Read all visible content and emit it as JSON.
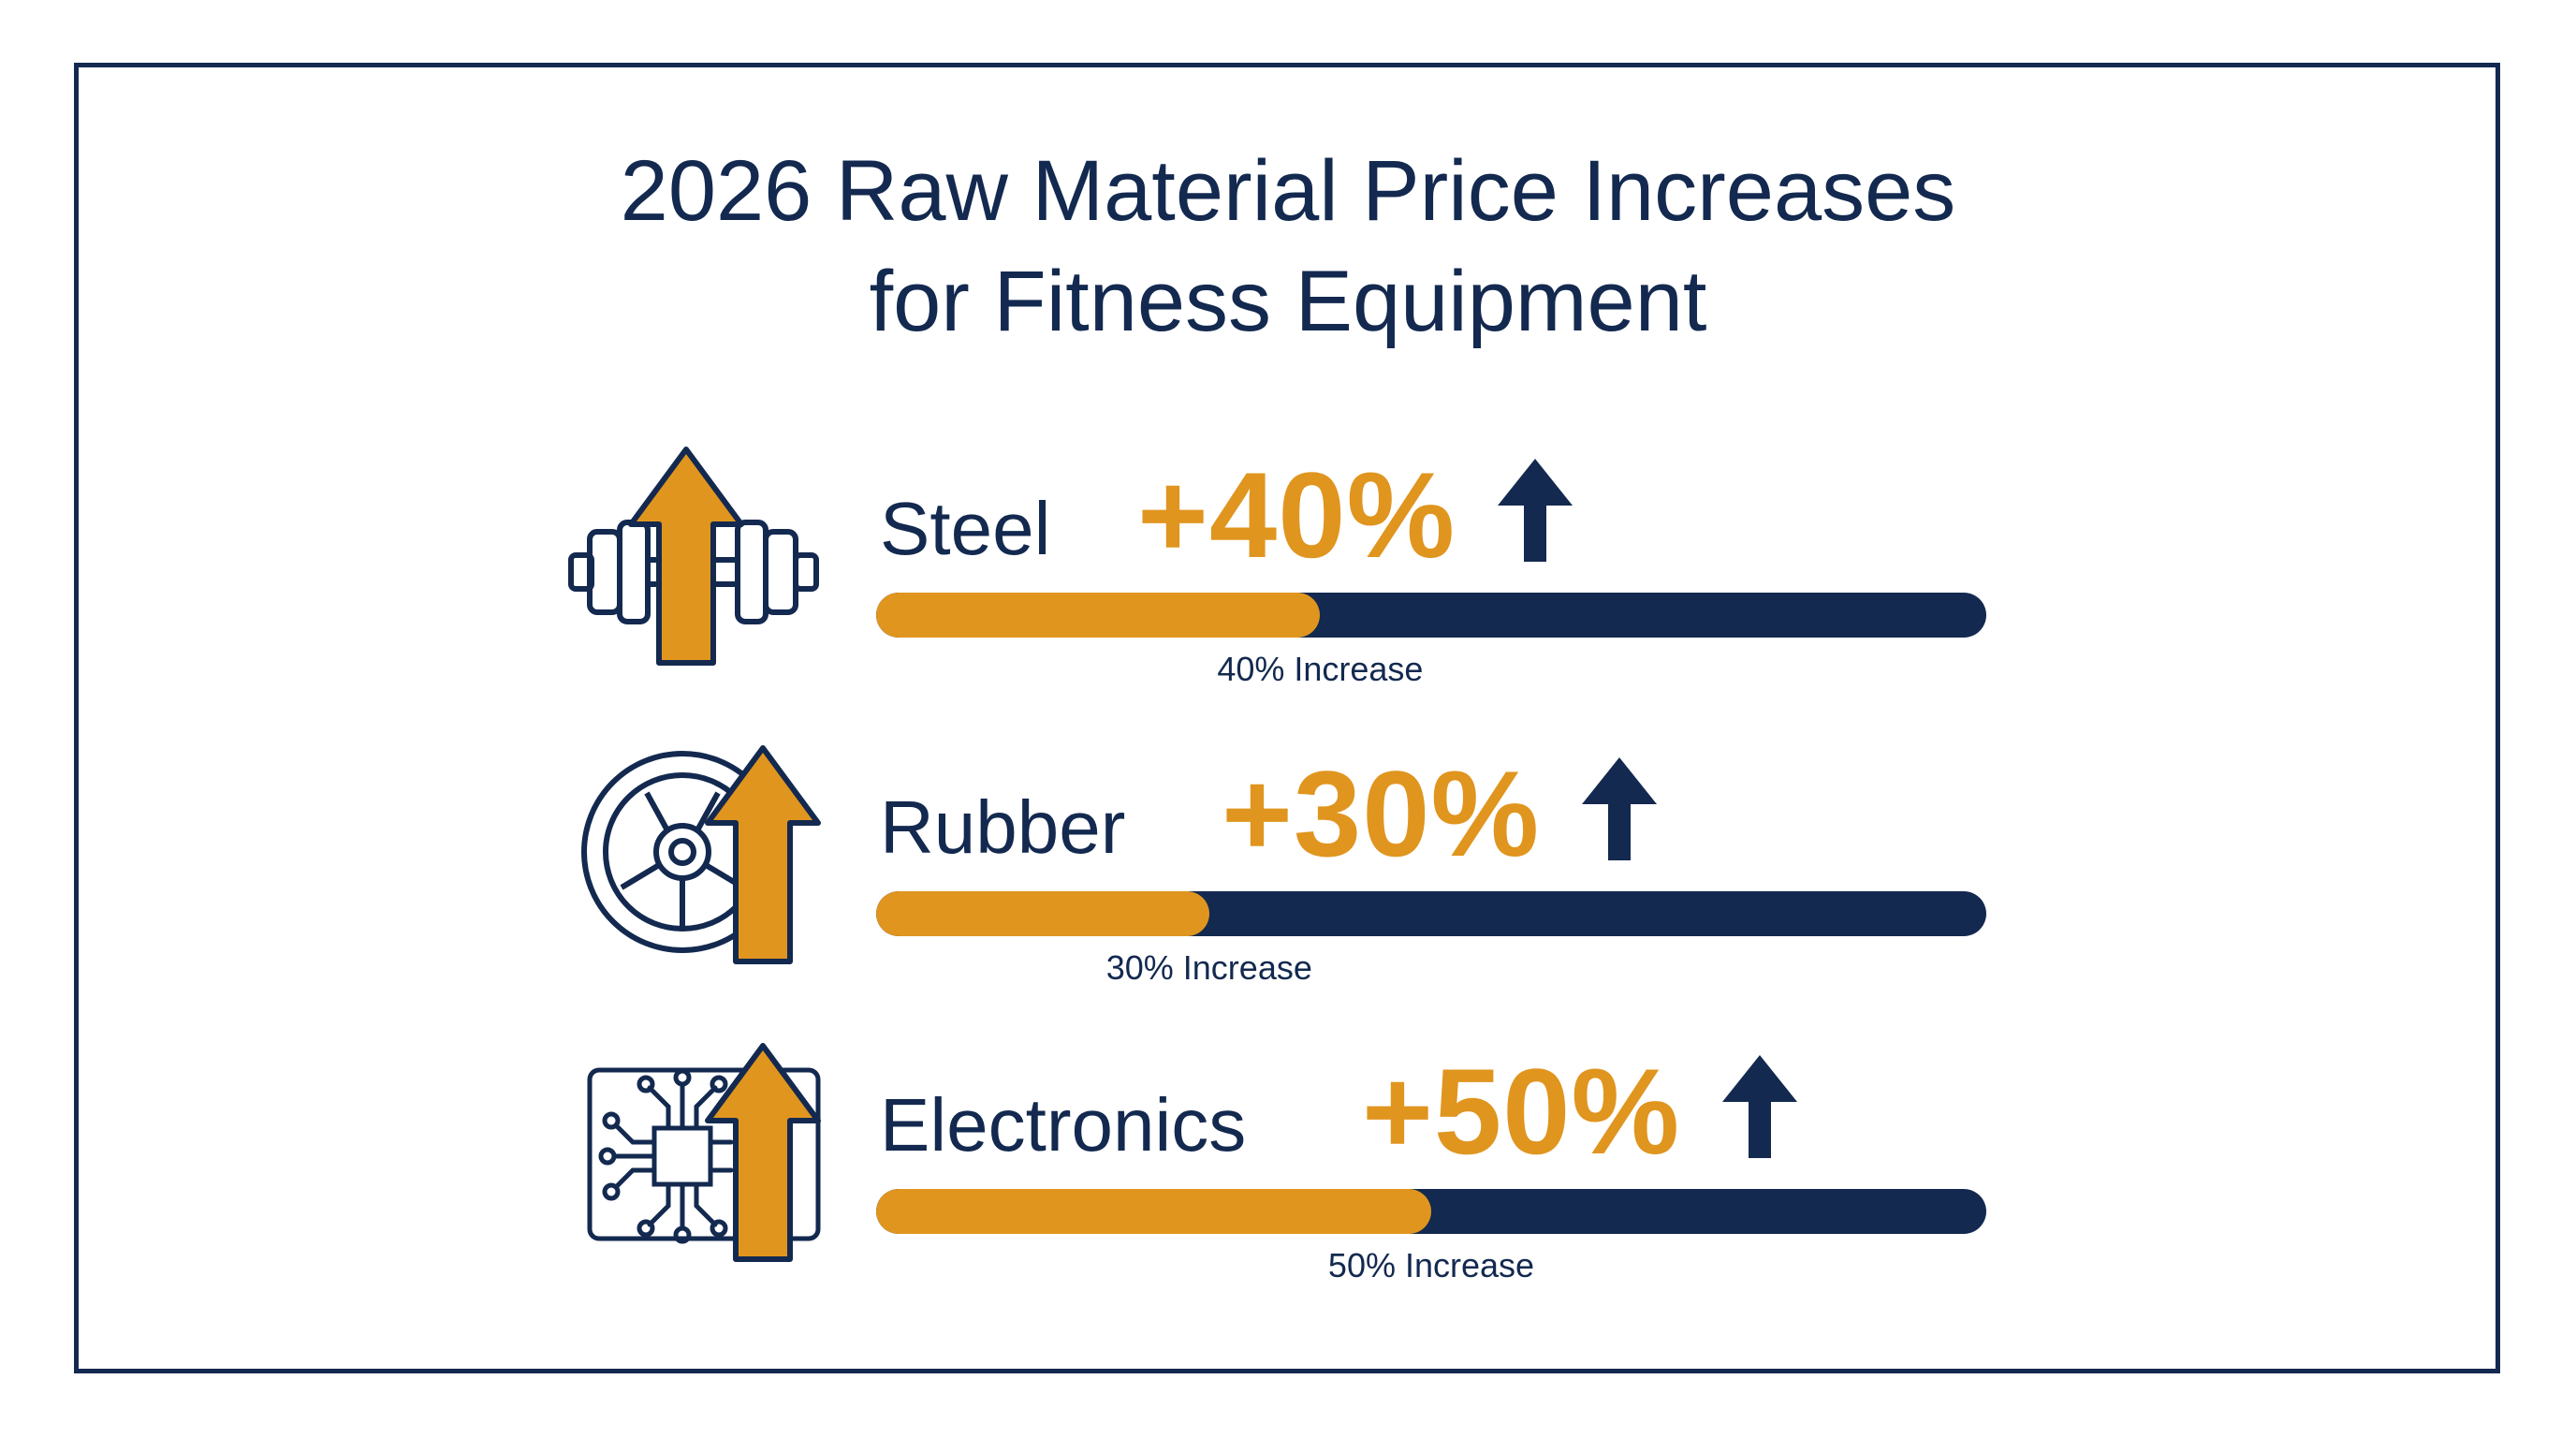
{
  "title": {
    "line1": "2026 Raw Material Price Increases",
    "line2": "for Fitness Equipment"
  },
  "colors": {
    "accent": "#e0951f",
    "navy": "#13294f",
    "background": "#ffffff"
  },
  "chart_data": {
    "type": "bar",
    "categories": [
      "Steel",
      "Rubber",
      "Electronics"
    ],
    "values": [
      40,
      30,
      50
    ],
    "value_labels": [
      "+40%",
      "+30%",
      "+50%"
    ],
    "captions": [
      "40% Increase",
      "30% Increase",
      "50% Increase"
    ],
    "icons": [
      "dumbbell-icon",
      "weight-plate-icon",
      "circuit-chip-icon"
    ],
    "ylim": [
      0,
      100
    ],
    "orientation": "horizontal",
    "grid": false
  }
}
